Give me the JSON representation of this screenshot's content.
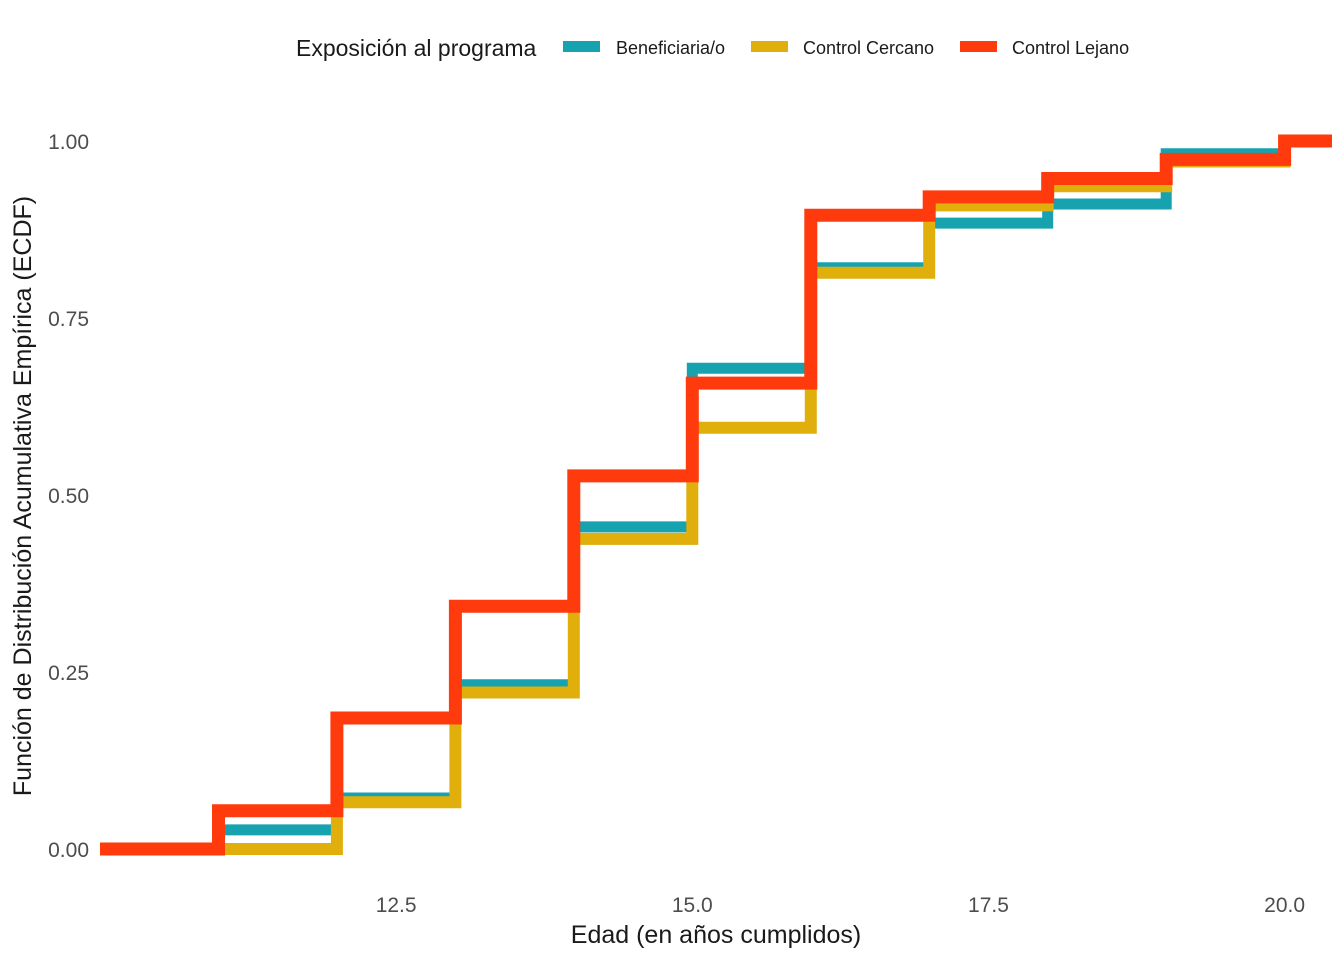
{
  "chart_data": {
    "type": "line",
    "subtype": "ecdf-step",
    "xlabel": "Edad (en años cumplidos)",
    "ylabel": "Función de Distribución Acumulativa Empírica (ECDF)",
    "xlim": [
      10,
      20.4
    ],
    "ylim": [
      0,
      1
    ],
    "x_ticks": [
      12.5,
      15.0,
      17.5,
      20.0
    ],
    "x_tick_labels": [
      "12.5",
      "15.0",
      "17.5",
      "20.0"
    ],
    "y_ticks": [
      0,
      0.25,
      0.5,
      0.75,
      1
    ],
    "y_tick_labels": [
      "0.00",
      "0.25",
      "0.50",
      "0.75",
      "1.00"
    ],
    "grid": false,
    "legend": {
      "title": "Exposición al programa",
      "position": "top"
    },
    "series": [
      {
        "name": "Beneficiaria/o",
        "color": "#17A2B0",
        "x": [
          10,
          11,
          12,
          13,
          14,
          15,
          16,
          17,
          18,
          19,
          20,
          20.4
        ],
        "values": [
          0,
          0.027,
          0.072,
          0.232,
          0.455,
          0.679,
          0.821,
          0.884,
          0.911,
          0.982,
          1.0,
          1.0
        ]
      },
      {
        "name": "Control Cercano",
        "color": "#E1AF0C",
        "x": [
          10,
          11,
          12,
          13,
          14,
          15,
          16,
          17,
          18,
          19,
          20,
          20.4
        ],
        "values": [
          0,
          0,
          0.066,
          0.221,
          0.438,
          0.595,
          0.814,
          0.909,
          0.936,
          0.971,
          1.0,
          1.0
        ]
      },
      {
        "name": "Control Lejano",
        "color": "#FF3A0D",
        "x": [
          10,
          11,
          12,
          13,
          14,
          15,
          16,
          17,
          18,
          19,
          20,
          20.4
        ],
        "values": [
          0,
          0.054,
          0.185,
          0.343,
          0.527,
          0.658,
          0.895,
          0.921,
          0.947,
          0.974,
          1.0,
          1.0
        ]
      }
    ]
  }
}
